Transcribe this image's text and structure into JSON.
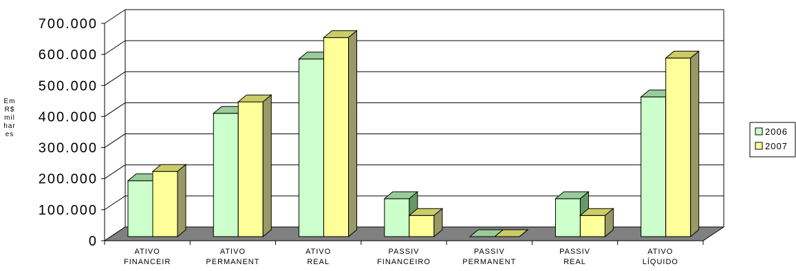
{
  "chart_data": {
    "type": "bar",
    "title": "",
    "ylabel": [
      "Em",
      "R$",
      "mil",
      "har",
      "es"
    ],
    "xlabel": "",
    "ylim": [
      0,
      700000
    ],
    "y_ticks": [
      0,
      100000,
      200000,
      300000,
      400000,
      500000,
      600000,
      700000
    ],
    "y_tick_labels": [
      "0",
      "100.000",
      "200.000",
      "300.000",
      "400.000",
      "500.000",
      "600.000",
      "700.000"
    ],
    "grid": true,
    "three_d": true,
    "legend_position": "right",
    "categories": [
      [
        "ATIVO",
        "FINANCEIR"
      ],
      [
        "ATIVO",
        "PERMANENT"
      ],
      [
        "ATIVO",
        "REAL"
      ],
      [
        "PASSIV",
        "FINANCEIRO"
      ],
      [
        "PASSIV",
        "PERMANENT"
      ],
      [
        "PASSIV",
        "REAL"
      ],
      [
        "ATIVO",
        "LÍQUIDO"
      ]
    ],
    "series": [
      {
        "name": "2006",
        "color": "#ccffcc",
        "top_color": "#99cc99",
        "side_color": "#669966",
        "values": [
          180000,
          397000,
          572000,
          122000,
          0,
          122000,
          450000
        ]
      },
      {
        "name": "2007",
        "color": "#ffff99",
        "top_color": "#cccc66",
        "side_color": "#999966",
        "values": [
          210000,
          434000,
          641000,
          68000,
          0,
          68000,
          575000
        ]
      }
    ],
    "floor_color": "#808080"
  }
}
